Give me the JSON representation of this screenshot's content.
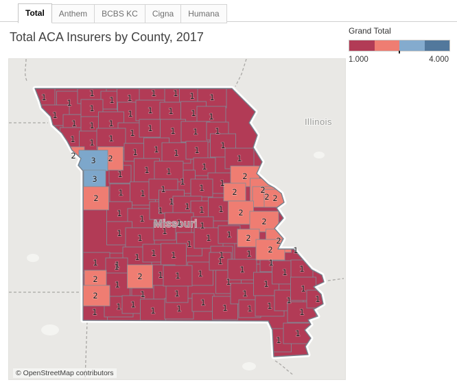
{
  "tabs": {
    "items": [
      {
        "label": "Total",
        "active": true
      },
      {
        "label": "Anthem",
        "active": false
      },
      {
        "label": "BCBS KC",
        "active": false
      },
      {
        "label": "Cigna",
        "active": false
      },
      {
        "label": "Humana",
        "active": false
      }
    ]
  },
  "title": "Total ACA Insurers by County, 2017",
  "legend": {
    "title": "Grand Total",
    "min_label": "1.000",
    "max_label": "4.000",
    "colors": [
      "#b23b56",
      "#ef7d72",
      "#84abce",
      "#52789c"
    ]
  },
  "map": {
    "state_label": "Missouri",
    "neighbor_label": "Illinois",
    "attribution": "© OpenStreetMap contributors",
    "colors": {
      "value_1": "#b23b56",
      "value_2": "#ef7d72",
      "value_3": "#7da7cb",
      "map_bg": "#e9e8e5",
      "county_border": "#7f8c96",
      "state_border": "#75818c"
    }
  },
  "chart_data": {
    "type": "heatmap",
    "subtype": "choropleth-map",
    "title": "Total ACA Insurers by County, 2017",
    "region": "Missouri counties",
    "legend_title": "Grand Total",
    "color_scale": {
      "min": 1.0,
      "max": 4.0,
      "min_label": "1.000",
      "max_label": "4.000",
      "colors": [
        "#b23b56",
        "#ef7d72",
        "#84abce",
        "#52789c"
      ]
    },
    "county_points_format": "[x_px, y_px, insurer_count]",
    "counties": [
      [
        63,
        144,
        1
      ],
      [
        100,
        152,
        1
      ],
      [
        79,
        170,
        1
      ],
      [
        107,
        182,
        1
      ],
      [
        105,
        205,
        1
      ],
      [
        133,
        138,
        1
      ],
      [
        162,
        148,
        1
      ],
      [
        188,
        145,
        1
      ],
      [
        223,
        138,
        1
      ],
      [
        255,
        138,
        1
      ],
      [
        279,
        142,
        1
      ],
      [
        308,
        144,
        1
      ],
      [
        133,
        160,
        1
      ],
      [
        189,
        168,
        1
      ],
      [
        218,
        163,
        1
      ],
      [
        248,
        164,
        1
      ],
      [
        281,
        167,
        1
      ],
      [
        307,
        172,
        1
      ],
      [
        133,
        185,
        1
      ],
      [
        161,
        182,
        1
      ],
      [
        192,
        196,
        1
      ],
      [
        218,
        189,
        1
      ],
      [
        251,
        193,
        1
      ],
      [
        284,
        194,
        1
      ],
      [
        316,
        193,
        1
      ],
      [
        133,
        210,
        1
      ],
      [
        161,
        204,
        1
      ],
      [
        196,
        224,
        1
      ],
      [
        227,
        220,
        1
      ],
      [
        256,
        225,
        1
      ],
      [
        286,
        221,
        1
      ],
      [
        324,
        214,
        1
      ],
      [
        348,
        233,
        1
      ],
      [
        297,
        245,
        1
      ],
      [
        265,
        267,
        1
      ],
      [
        323,
        269,
        1
      ],
      [
        106,
        229,
        2
      ],
      [
        160,
        233,
        2
      ],
      [
        135,
        236,
        3
      ],
      [
        137,
        263,
        3
      ],
      [
        139,
        291,
        2
      ],
      [
        174,
        256,
        1
      ],
      [
        213,
        250,
        1
      ],
      [
        245,
        252,
        1
      ],
      [
        175,
        283,
        1
      ],
      [
        207,
        284,
        1
      ],
      [
        237,
        278,
        1
      ],
      [
        293,
        276,
        1
      ],
      [
        173,
        313,
        1
      ],
      [
        206,
        321,
        1
      ],
      [
        233,
        309,
        1
      ],
      [
        249,
        296,
        1
      ],
      [
        272,
        303,
        1
      ],
      [
        293,
        308,
        1
      ],
      [
        321,
        307,
        1
      ],
      [
        260,
        327,
        1
      ],
      [
        294,
        331,
        1
      ],
      [
        356,
        259,
        2
      ],
      [
        341,
        282,
        2
      ],
      [
        382,
        279,
        2
      ],
      [
        388,
        289,
        2
      ],
      [
        400,
        291,
        2
      ],
      [
        350,
        312,
        2
      ],
      [
        384,
        325,
        2
      ],
      [
        173,
        342,
        1
      ],
      [
        203,
        349,
        1
      ],
      [
        239,
        339,
        1
      ],
      [
        275,
        358,
        1
      ],
      [
        303,
        349,
        1
      ],
      [
        333,
        344,
        1
      ],
      [
        361,
        349,
        2
      ],
      [
        405,
        353,
        2
      ],
      [
        393,
        366,
        2
      ],
      [
        430,
        367,
        1
      ],
      [
        362,
        372,
        1
      ],
      [
        322,
        374,
        1
      ],
      [
        170,
        388,
        1
      ],
      [
        199,
        377,
        1
      ],
      [
        223,
        371,
        1
      ],
      [
        252,
        374,
        1
      ],
      [
        138,
        385,
        1
      ],
      [
        169,
        391,
        1
      ],
      [
        138,
        409,
        2
      ],
      [
        170,
        417,
        1
      ],
      [
        203,
        405,
        2
      ],
      [
        233,
        403,
        1
      ],
      [
        138,
        433,
        2
      ],
      [
        207,
        431,
        1
      ],
      [
        137,
        457,
        1
      ],
      [
        172,
        449,
        1
      ],
      [
        193,
        446,
        1
      ],
      [
        222,
        455,
        1
      ],
      [
        260,
        452,
        1
      ],
      [
        257,
        430,
        1
      ],
      [
        291,
        401,
        1
      ],
      [
        258,
        404,
        1
      ],
      [
        320,
        383,
        1
      ],
      [
        332,
        413,
        1
      ],
      [
        352,
        395,
        1
      ],
      [
        295,
        443,
        1
      ],
      [
        327,
        451,
        1
      ],
      [
        356,
        430,
        1
      ],
      [
        363,
        452,
        1
      ],
      [
        387,
        416,
        1
      ],
      [
        392,
        448,
        1
      ],
      [
        394,
        385,
        1
      ],
      [
        414,
        399,
        1
      ],
      [
        420,
        440,
        1
      ],
      [
        439,
        394,
        1
      ],
      [
        441,
        423,
        1
      ],
      [
        439,
        457,
        1
      ],
      [
        462,
        438,
        1
      ],
      [
        405,
        498,
        1
      ],
      [
        433,
        488,
        1
      ]
    ]
  }
}
